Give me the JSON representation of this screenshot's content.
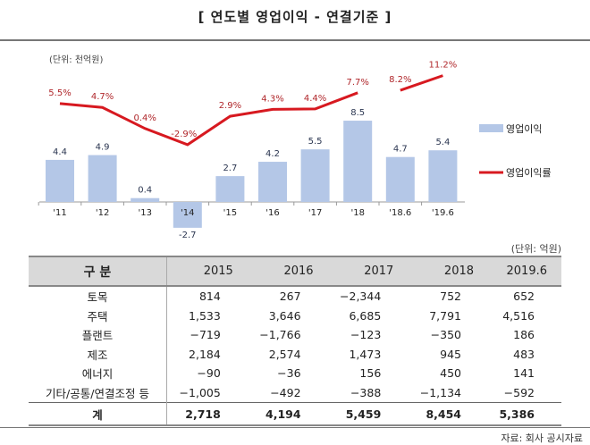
{
  "title": "[ 연도별 영업이익 - 연결기준 ]",
  "chart_data": {
    "type": "bar+line",
    "unit_label": "(단위: 천억원)",
    "categories": [
      "'11",
      "'12",
      "'13",
      "'14",
      "'15",
      "'16",
      "'17",
      "'18",
      "'18.6",
      "'19.6"
    ],
    "series": [
      {
        "name": "영업이익",
        "type": "bar",
        "color": "#b4c7e7",
        "values": [
          4.4,
          4.9,
          0.4,
          -2.7,
          2.7,
          4.2,
          5.5,
          8.5,
          4.7,
          5.4
        ],
        "labels": [
          "4.4",
          "4.9",
          "0.4",
          "-2.7",
          "2.7",
          "4.2",
          "5.5",
          "8.5",
          "4.7",
          "5.4"
        ]
      },
      {
        "name": "영업이익률",
        "type": "line",
        "color": "#d71920",
        "values": [
          5.5,
          4.7,
          0.4,
          -2.9,
          2.9,
          4.3,
          4.4,
          7.7,
          8.2,
          11.2
        ],
        "labels": [
          "5.5%",
          "4.7%",
          "0.4%",
          "-2.9%",
          "2.9%",
          "4.3%",
          "4.4%",
          "7.7%",
          "8.2%",
          "11.2%"
        ],
        "segments": [
          [
            0,
            7
          ],
          [
            8,
            9
          ]
        ]
      }
    ],
    "legend": "right"
  },
  "table": {
    "unit": "(단위: 억원)",
    "headers": [
      "구 분",
      "2015",
      "2016",
      "2017",
      "2018",
      "2019.6"
    ],
    "rows": [
      [
        "토목",
        "814",
        "267",
        "−2,344",
        "752",
        "652"
      ],
      [
        "주택",
        "1,533",
        "3,646",
        "6,685",
        "7,791",
        "4,516"
      ],
      [
        "플랜트",
        "−719",
        "−1,766",
        "−123",
        "−350",
        "186"
      ],
      [
        "제조",
        "2,184",
        "2,574",
        "1,473",
        "945",
        "483"
      ],
      [
        "에너지",
        "−90",
        "−36",
        "156",
        "450",
        "141"
      ],
      [
        "기타/공통/연결조정 등",
        "−1,005",
        "−492",
        "−388",
        "−1,134",
        "−592"
      ]
    ],
    "total": [
      "계",
      "2,718",
      "4,194",
      "5,459",
      "8,454",
      "5,386"
    ]
  },
  "source": "자료: 회사 공시자료"
}
